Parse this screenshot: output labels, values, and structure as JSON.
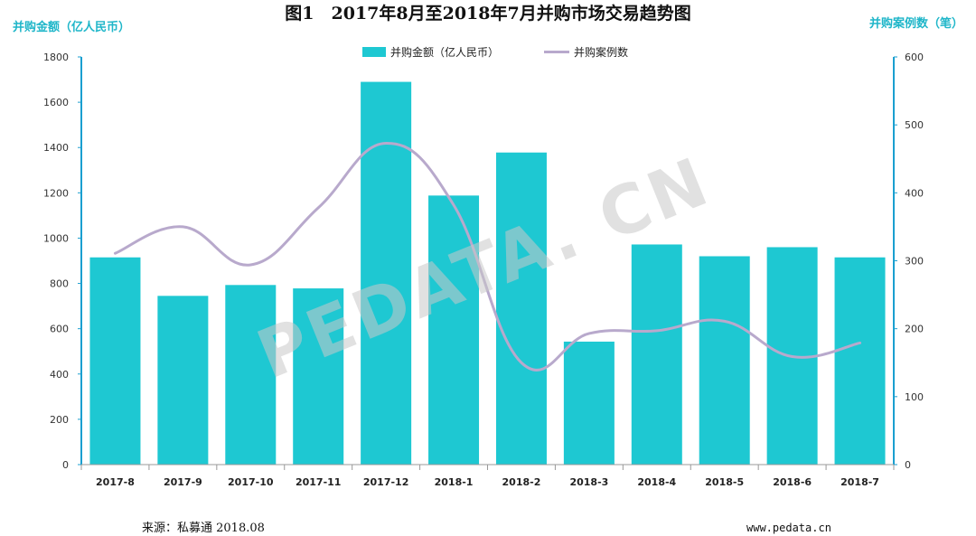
{
  "chart_data": {
    "type": "bar",
    "title": "图1　2017年8月至2018年7月并购市场交易趋势图",
    "ylabel_left": "并购金额（亿人民币）",
    "ylabel_right": "并购案例数（笔）",
    "categories": [
      "2017-8",
      "2017-9",
      "2017-10",
      "2017-11",
      "2017-12",
      "2018-1",
      "2018-2",
      "2018-3",
      "2018-4",
      "2018-5",
      "2018-6",
      "2018-7"
    ],
    "series": [
      {
        "name": "并购金额（亿人民币）",
        "type": "bar",
        "axis": "left",
        "color": "#1ec8d2",
        "values": [
          915,
          745,
          793,
          778,
          1690,
          1188,
          1378,
          543,
          972,
          920,
          960,
          915
        ]
      },
      {
        "name": "并购案例数",
        "type": "line",
        "axis": "right",
        "color": "#b8a9cc",
        "values": [
          311,
          350,
          294,
          378,
          473,
          382,
          150,
          193,
          197,
          211,
          159,
          179
        ]
      }
    ],
    "ylim_left": [
      0,
      1800
    ],
    "yticks_left": [
      0,
      200,
      400,
      600,
      800,
      1000,
      1200,
      1400,
      1600,
      1800
    ],
    "ylim_right": [
      0,
      600
    ],
    "yticks_right": [
      0,
      100,
      200,
      300,
      400,
      500,
      600
    ],
    "legend_placement": "top-center",
    "grid": false
  },
  "footer": {
    "source": "来源：私募通 2018.08",
    "url": "www.pedata.cn"
  },
  "watermark": "PEDATA. CN"
}
